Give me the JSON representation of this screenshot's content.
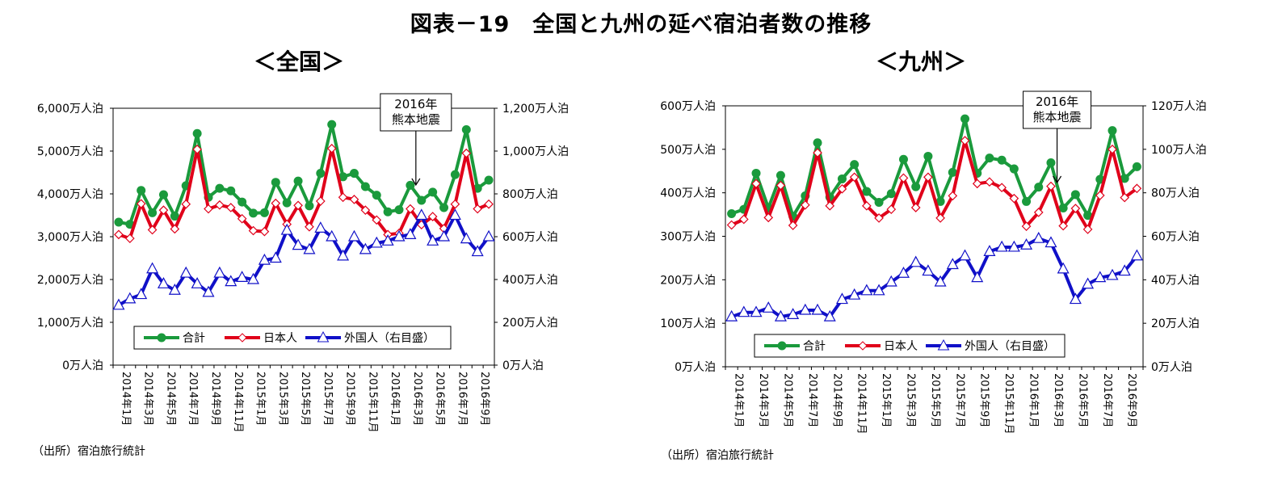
{
  "title": "図表－19　全国と九州の延べ宿泊者数の推移",
  "panels": {
    "left": {
      "title": "＜全国＞",
      "source": "（出所）宿泊旅行統計"
    },
    "right": {
      "title": "＜九州＞",
      "source": "（出所）宿泊旅行統計"
    }
  },
  "colors": {
    "total": "#1a9a3c",
    "japanese": "#e0001a",
    "foreign": "#1010c8"
  },
  "chart_data": [
    {
      "type": "line",
      "panel": "全国",
      "x": [
        "2014年1月",
        "2014年2月",
        "2014年3月",
        "2014年4月",
        "2014年5月",
        "2014年6月",
        "2014年7月",
        "2014年8月",
        "2014年9月",
        "2014年10月",
        "2014年11月",
        "2014年12月",
        "2015年1月",
        "2015年2月",
        "2015年3月",
        "2015年4月",
        "2015年5月",
        "2015年6月",
        "2015年7月",
        "2015年8月",
        "2015年9月",
        "2015年10月",
        "2015年11月",
        "2015年12月",
        "2016年1月",
        "2016年2月",
        "2016年3月",
        "2016年4月",
        "2016年5月",
        "2016年6月",
        "2016年7月",
        "2016年8月",
        "2016年9月",
        "2016年10月"
      ],
      "x_tick_labels": [
        "2014年1月",
        "2014年3月",
        "2014年5月",
        "2014年7月",
        "2014年9月",
        "2014年11月",
        "2015年1月",
        "2015年3月",
        "2015年5月",
        "2015年7月",
        "2015年9月",
        "2015年11月",
        "2016年1月",
        "2016年3月",
        "2016年5月",
        "2016年7月",
        "2016年9月"
      ],
      "y_left": {
        "ylim": [
          0,
          6000
        ],
        "ticks": [
          "0万人泊",
          "1,000万人泊",
          "2,000万人泊",
          "3,000万人泊",
          "4,000万人泊",
          "5,000万人泊",
          "6,000万人泊"
        ]
      },
      "y_right": {
        "ylim": [
          0,
          1200
        ],
        "ticks": [
          "0万人泊",
          "200万人泊",
          "400万人泊",
          "600万人泊",
          "800万人泊",
          "1,000万人泊",
          "1,200万人泊"
        ]
      },
      "series": [
        {
          "name": "合計",
          "axis": "left",
          "values": [
            3340,
            3290,
            4080,
            3560,
            3980,
            3480,
            4190,
            5410,
            3920,
            4130,
            4070,
            3810,
            3550,
            3560,
            4270,
            3790,
            4300,
            3720,
            4480,
            5620,
            4400,
            4480,
            4170,
            3970,
            3580,
            3630,
            4200,
            3850,
            4040,
            3680,
            4450,
            5500,
            4130,
            4320
          ]
        },
        {
          "name": "日本人",
          "axis": "left",
          "values": [
            3050,
            2960,
            3770,
            3160,
            3620,
            3180,
            3760,
            5040,
            3650,
            3740,
            3680,
            3420,
            3140,
            3120,
            3780,
            3290,
            3730,
            3230,
            3830,
            5060,
            3920,
            3870,
            3620,
            3390,
            3050,
            3080,
            3650,
            3280,
            3470,
            3190,
            3760,
            4950,
            3650,
            3760
          ]
        },
        {
          "name": "外国人（右目盛）",
          "axis": "right",
          "values": [
            280,
            310,
            330,
            450,
            380,
            350,
            430,
            380,
            340,
            430,
            390,
            410,
            400,
            490,
            500,
            630,
            560,
            540,
            640,
            600,
            510,
            600,
            540,
            570,
            580,
            600,
            610,
            700,
            580,
            600,
            700,
            590,
            530,
            600
          ]
        }
      ],
      "legend": [
        "合計",
        "日本人",
        "外国人（右目盛）"
      ],
      "annotation": {
        "text": [
          "2016年",
          "熊本地震"
        ],
        "at": "2016年4月"
      }
    },
    {
      "type": "line",
      "panel": "九州",
      "x": [
        "2014年1月",
        "2014年2月",
        "2014年3月",
        "2014年4月",
        "2014年5月",
        "2014年6月",
        "2014年7月",
        "2014年8月",
        "2014年9月",
        "2014年10月",
        "2014年11月",
        "2014年12月",
        "2015年1月",
        "2015年2月",
        "2015年3月",
        "2015年4月",
        "2015年5月",
        "2015年6月",
        "2015年7月",
        "2015年8月",
        "2015年9月",
        "2015年10月",
        "2015年11月",
        "2015年12月",
        "2016年1月",
        "2016年2月",
        "2016年3月",
        "2016年4月",
        "2016年5月",
        "2016年6月",
        "2016年7月",
        "2016年8月",
        "2016年9月",
        "2016年10月"
      ],
      "x_tick_labels": [
        "2014年1月",
        "2014年3月",
        "2014年5月",
        "2014年7月",
        "2014年9月",
        "2014年11月",
        "2015年1月",
        "2015年3月",
        "2015年5月",
        "2015年7月",
        "2015年9月",
        "2015年11月",
        "2016年1月",
        "2016年3月",
        "2016年5月",
        "2016年7月",
        "2016年9月"
      ],
      "y_left": {
        "ylim": [
          0,
          600
        ],
        "ticks": [
          "0万人泊",
          "100万人泊",
          "200万人泊",
          "300万人泊",
          "400万人泊",
          "500万人泊",
          "600万人泊"
        ]
      },
      "y_right": {
        "ylim": [
          0,
          120
        ],
        "ticks": [
          "0万人泊",
          "20万人泊",
          "40万人泊",
          "60万人泊",
          "80万人泊",
          "100万人泊",
          "120万人泊"
        ]
      },
      "series": [
        {
          "name": "合計",
          "axis": "left",
          "values": [
            352,
            362,
            445,
            365,
            440,
            346,
            393,
            515,
            390,
            432,
            465,
            403,
            378,
            398,
            477,
            414,
            484,
            380,
            447,
            570,
            445,
            480,
            475,
            455,
            380,
            413,
            469,
            365,
            396,
            348,
            431,
            543,
            433,
            460
          ]
        },
        {
          "name": "日本人",
          "axis": "left",
          "values": [
            326,
            339,
            421,
            343,
            417,
            325,
            372,
            492,
            370,
            409,
            436,
            370,
            342,
            362,
            434,
            366,
            436,
            342,
            393,
            520,
            421,
            425,
            412,
            387,
            323,
            355,
            415,
            324,
            364,
            316,
            394,
            500,
            389,
            410
          ]
        },
        {
          "name": "外国人（右目盛）",
          "axis": "right",
          "values": [
            23,
            25,
            25,
            27,
            23,
            24,
            26,
            26,
            23,
            31,
            33,
            35,
            35,
            39,
            43,
            48,
            44,
            39,
            47,
            51,
            41,
            53,
            55,
            55,
            56,
            59,
            57,
            45,
            31,
            38,
            41,
            42,
            44,
            51
          ]
        }
      ],
      "legend": [
        "合計",
        "日本人",
        "外国人（右目盛）"
      ],
      "annotation": {
        "text": [
          "2016年",
          "熊本地震"
        ],
        "at": "2016年4月"
      }
    }
  ]
}
